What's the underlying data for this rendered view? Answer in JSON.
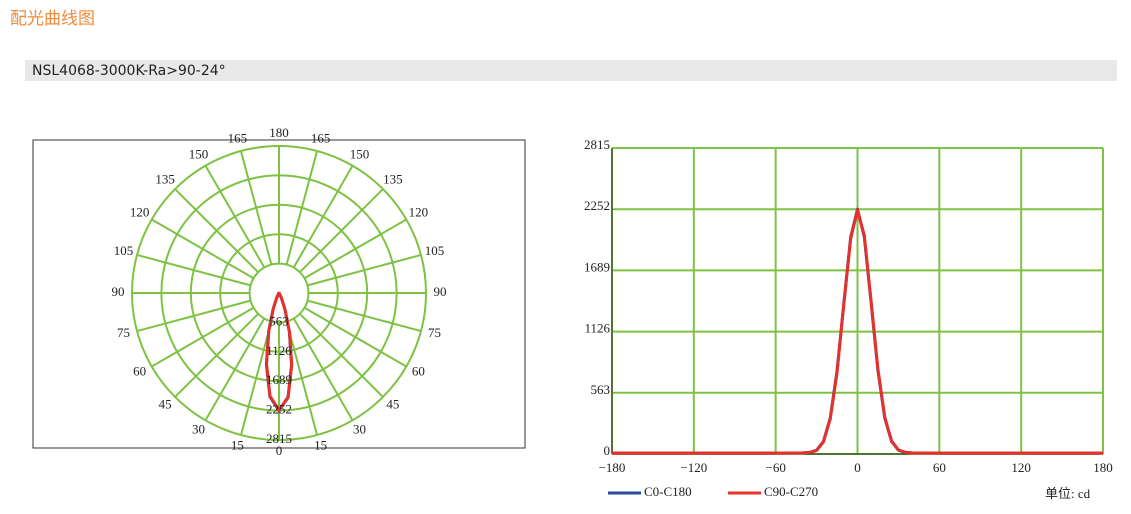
{
  "page": {
    "heading": "配光曲线图",
    "product": "NSL4068-3000K-Ra>90-24°"
  },
  "chart_data": [
    {
      "type": "polar",
      "rlim": [
        0,
        2815
      ],
      "rticks": [
        563,
        1126,
        1689,
        2252,
        2815
      ],
      "thetaticks": [
        0,
        15,
        30,
        45,
        60,
        75,
        90,
        105,
        120,
        135,
        150,
        165,
        180
      ],
      "angles": [
        -40,
        -35,
        -30,
        -25,
        -20,
        -15,
        -10,
        -5,
        0,
        5,
        10,
        15,
        20,
        25,
        30,
        35,
        40
      ],
      "series": [
        {
          "color": "#2a4a9c",
          "values": [
            10,
            15,
            35,
            115,
            330,
            765,
            1390,
            1995,
            2252,
            1995,
            1390,
            765,
            330,
            115,
            35,
            15,
            10
          ]
        },
        {
          "color": "#e8302a",
          "values": [
            10,
            15,
            32,
            110,
            320,
            750,
            1380,
            1980,
            2245,
            2010,
            1400,
            780,
            340,
            120,
            38,
            15,
            10
          ]
        }
      ]
    },
    {
      "type": "line",
      "xlim": [
        -180,
        180
      ],
      "xticks": [
        {
          "value": -180,
          "label": "−180"
        },
        {
          "value": -120,
          "label": "−120"
        },
        {
          "value": -60,
          "label": "−60"
        },
        0,
        60,
        120,
        180
      ],
      "ylim": [
        0,
        2815
      ],
      "yticks": [
        0,
        563,
        1126,
        1689,
        2252,
        2815
      ],
      "unit_label": "单位: cd",
      "x": [
        -180,
        -60,
        -40,
        -35,
        -30,
        -25,
        -20,
        -15,
        -10,
        -5,
        0,
        5,
        10,
        15,
        20,
        25,
        30,
        35,
        40,
        60,
        180
      ],
      "series": [
        {
          "name": "C0-C180",
          "color": "#2a4a9c",
          "values": [
            8,
            8,
            10,
            15,
            35,
            115,
            330,
            765,
            1390,
            1995,
            2252,
            1995,
            1390,
            765,
            330,
            115,
            35,
            15,
            10,
            8,
            8
          ]
        },
        {
          "name": "C90-C270",
          "color": "#e8302a",
          "values": [
            8,
            8,
            10,
            15,
            32,
            110,
            320,
            750,
            1380,
            1980,
            2245,
            2010,
            1400,
            780,
            340,
            120,
            38,
            15,
            10,
            8,
            8
          ]
        }
      ]
    }
  ]
}
